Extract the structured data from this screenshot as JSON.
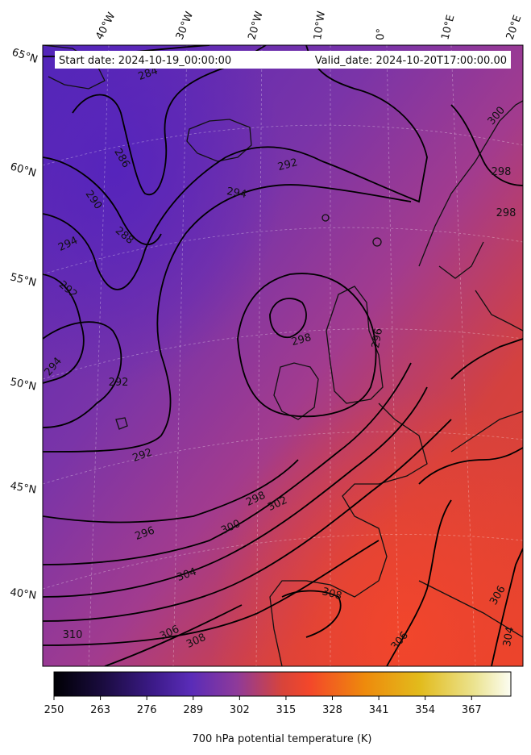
{
  "header": {
    "start_date": "Start date: 2024-10-19_00:00:00",
    "valid_date": "Valid_date: 2024-10-20T17:00:00.00"
  },
  "longitude_labels": [
    "40°W",
    "30°W",
    "20°W",
    "10°W",
    "0°",
    "10°E",
    "20°E"
  ],
  "latitude_labels": [
    "65°N",
    "60°N",
    "55°N",
    "50°N",
    "45°N",
    "40°N"
  ],
  "contour_labels": [
    "284",
    "286",
    "290",
    "288",
    "294",
    "292",
    "294",
    "292",
    "298",
    "296",
    "292",
    "292",
    "298",
    "302",
    "300",
    "296",
    "304",
    "308",
    "306",
    "308",
    "310",
    "306",
    "306",
    "304",
    "298",
    "298",
    "300",
    "294"
  ],
  "colorbar": {
    "ticks": [
      "250",
      "263",
      "276",
      "289",
      "302",
      "315",
      "328",
      "341",
      "354",
      "367"
    ],
    "label": "700 hPa potential temperature (K)",
    "colors": [
      "#000004",
      "#3b0f70",
      "#5e2ea0",
      "#7a3ca6",
      "#b33d86",
      "#f0452e",
      "#f08a0a",
      "#e6b416",
      "#e8e070",
      "#fcfdf0"
    ]
  },
  "map_colors": {
    "cold": "#5a2ab5",
    "mid": "#8b3a9c",
    "warm": "#d8443a",
    "hot": "#f2462c"
  }
}
